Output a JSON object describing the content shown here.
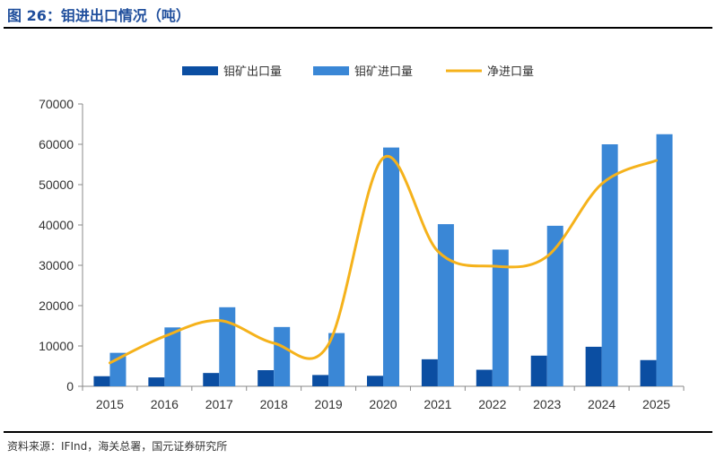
{
  "title": "图 26：钼进出口情况（吨）",
  "source": "资料来源：IFInd，海关总署，国元证券研究所",
  "colors": {
    "export": "#0b4ea2",
    "import": "#3a87d6",
    "net": "#f5b21b",
    "title": "#1f4e9c"
  },
  "chart_data": {
    "type": "bar",
    "categories": [
      "2015",
      "2016",
      "2017",
      "2018",
      "2019",
      "2020",
      "2021",
      "2022",
      "2023",
      "2024",
      "2025"
    ],
    "ylim": [
      0,
      70000
    ],
    "yticks": [
      0,
      10000,
      20000,
      30000,
      40000,
      50000,
      60000,
      70000
    ],
    "legend_position": "top-center",
    "grid": false,
    "series": [
      {
        "name": "钼矿出口量",
        "type": "bar",
        "values": [
          2500,
          2200,
          3300,
          4000,
          2800,
          2600,
          6700,
          4100,
          7600,
          9800,
          6500
        ]
      },
      {
        "name": "钼矿进口量",
        "type": "bar",
        "values": [
          8300,
          14600,
          19600,
          14700,
          13200,
          59200,
          40200,
          33900,
          39800,
          60000,
          62500
        ]
      },
      {
        "name": "净进口量",
        "type": "line",
        "values": [
          5800,
          12400,
          16300,
          10700,
          10400,
          56600,
          33500,
          29800,
          32200,
          50200,
          56000
        ]
      }
    ]
  }
}
